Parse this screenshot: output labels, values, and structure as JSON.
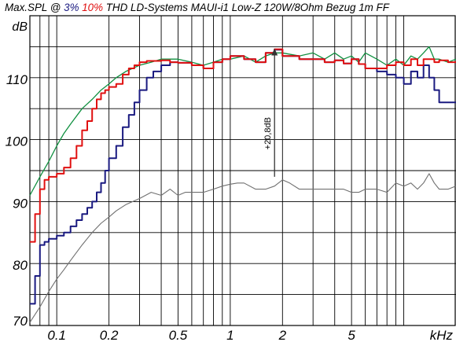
{
  "title": {
    "prefix": "Max.SPL @ ",
    "thd3": "3%",
    "thd10": "10%",
    "suffix": " THD LD-Systems MAUI-i1 Low-Z 120W/8Ohm Bezug 1m FF"
  },
  "colors": {
    "blue": "#1a1a80",
    "red": "#e01010",
    "green": "#109040",
    "gray": "#707070",
    "grid": "#000000"
  },
  "chart_data": {
    "type": "line",
    "x_scale": "log",
    "xlim": [
      0.07,
      20
    ],
    "ylim": [
      70,
      120
    ],
    "ylabel": "dB",
    "xlabel": "kHz",
    "grid": true,
    "x_ticks": [
      {
        "value": 0.1,
        "label": "0.1"
      },
      {
        "value": 0.2,
        "label": "0.2"
      },
      {
        "value": 0.5,
        "label": "0.5"
      },
      {
        "value": 1,
        "label": "1"
      },
      {
        "value": 2,
        "label": "2"
      },
      {
        "value": 5,
        "label": "5"
      }
    ],
    "y_ticks": [
      70,
      80,
      90,
      100,
      110
    ],
    "annotation": {
      "text": "+20,8dB",
      "x": 1.8,
      "y_from": 94,
      "y_to": 114.6
    },
    "series": [
      {
        "key": "blue",
        "x": [
          0.07,
          0.075,
          0.08,
          0.085,
          0.09,
          0.1,
          0.11,
          0.12,
          0.13,
          0.14,
          0.15,
          0.16,
          0.17,
          0.18,
          0.19,
          0.2,
          0.22,
          0.24,
          0.26,
          0.28,
          0.3,
          0.33,
          0.36,
          0.4,
          0.45,
          0.5,
          0.6,
          0.7,
          0.8,
          0.9,
          1,
          1.2,
          1.4,
          1.6,
          1.8,
          2,
          2.5,
          3,
          3.5,
          4,
          4.5,
          5,
          5.5,
          6,
          7,
          8,
          9,
          10,
          11,
          12,
          13,
          14,
          15,
          16,
          18,
          20
        ],
        "y": [
          73.5,
          78,
          83,
          83.5,
          84,
          84.5,
          85,
          86,
          87,
          88,
          89,
          90,
          91.5,
          93,
          95,
          97,
          99,
          102,
          104,
          106,
          108,
          110,
          111,
          112,
          112.5,
          112.4,
          112,
          111.5,
          112.5,
          113,
          113.5,
          113,
          112.5,
          114,
          114.5,
          113.5,
          113,
          113,
          112.5,
          112.8,
          112.3,
          113,
          112.2,
          111.5,
          111,
          110.5,
          110,
          109,
          111,
          110,
          112,
          110,
          108,
          106,
          106,
          106
        ]
      },
      {
        "key": "red",
        "x": [
          0.07,
          0.075,
          0.08,
          0.085,
          0.09,
          0.1,
          0.11,
          0.12,
          0.13,
          0.14,
          0.15,
          0.16,
          0.17,
          0.18,
          0.19,
          0.2,
          0.22,
          0.24,
          0.26,
          0.28,
          0.3,
          0.33,
          0.36,
          0.4,
          0.45,
          0.5,
          0.6,
          0.7,
          0.8,
          0.9,
          1,
          1.2,
          1.4,
          1.6,
          1.8,
          2,
          2.5,
          3,
          3.5,
          4,
          4.5,
          5,
          5.5,
          6,
          7,
          8,
          9,
          10,
          11,
          12,
          13,
          14,
          15,
          16,
          18,
          20
        ],
        "y": [
          83.5,
          88,
          92,
          93.5,
          94,
          94.5,
          95.5,
          97,
          99,
          101.5,
          103,
          105,
          106.5,
          107.5,
          108,
          108.5,
          109,
          110.5,
          111.5,
          112,
          112.5,
          112.7,
          112.7,
          112.8,
          112.5,
          112.4,
          112,
          111.5,
          112.5,
          113,
          113.5,
          113,
          112.5,
          114,
          114.6,
          113.5,
          113,
          113,
          112.5,
          112.8,
          112.3,
          113,
          112.2,
          111.5,
          111.5,
          112,
          112.5,
          112,
          113,
          112,
          113,
          113,
          112.5,
          112.8,
          112.5,
          112.5
        ]
      },
      {
        "key": "green",
        "x": [
          0.07,
          0.08,
          0.09,
          0.1,
          0.11,
          0.12,
          0.14,
          0.16,
          0.18,
          0.2,
          0.22,
          0.25,
          0.3,
          0.35,
          0.4,
          0.5,
          0.6,
          0.7,
          0.8,
          0.9,
          1,
          1.2,
          1.4,
          1.6,
          1.8,
          2,
          2.5,
          3,
          3.5,
          4,
          4.5,
          5,
          5.5,
          6,
          7,
          8,
          9,
          10,
          11,
          12,
          13,
          14,
          15,
          16,
          18,
          20
        ],
        "y": [
          91,
          94,
          96.5,
          99,
          101,
          102.5,
          105,
          106.5,
          108,
          109,
          110,
          111,
          112,
          112.5,
          113,
          113,
          112.5,
          112,
          112.5,
          113,
          113,
          113.5,
          112.5,
          113.5,
          114,
          114,
          113.5,
          114,
          113,
          114,
          113,
          113.5,
          112.5,
          114,
          113,
          112,
          113,
          112,
          113.5,
          113,
          114,
          115,
          113,
          113,
          112.5,
          113
        ]
      },
      {
        "key": "gray",
        "x": [
          0.07,
          0.08,
          0.09,
          0.1,
          0.11,
          0.12,
          0.14,
          0.16,
          0.18,
          0.2,
          0.22,
          0.25,
          0.3,
          0.35,
          0.4,
          0.45,
          0.5,
          0.55,
          0.6,
          0.7,
          0.8,
          0.9,
          1,
          1.1,
          1.2,
          1.4,
          1.6,
          1.8,
          2,
          2.2,
          2.5,
          3,
          3.5,
          4,
          4.5,
          5,
          5.5,
          6,
          7,
          8,
          9,
          10,
          11,
          12,
          13,
          14,
          15,
          16,
          18,
          20
        ],
        "y": [
          70.5,
          73,
          75.5,
          77.5,
          79,
          80.5,
          83,
          85,
          86.5,
          87.5,
          88.5,
          89.5,
          90.5,
          91.5,
          91,
          92,
          91,
          91.5,
          91.5,
          91.5,
          92,
          92.5,
          92.8,
          93,
          93,
          92,
          92,
          92.5,
          93.5,
          93,
          92,
          92,
          92,
          92,
          92,
          91.5,
          91.5,
          92,
          92,
          91.5,
          93,
          92.5,
          93,
          92,
          93,
          94.5,
          93,
          92,
          92,
          92.5
        ]
      }
    ]
  }
}
